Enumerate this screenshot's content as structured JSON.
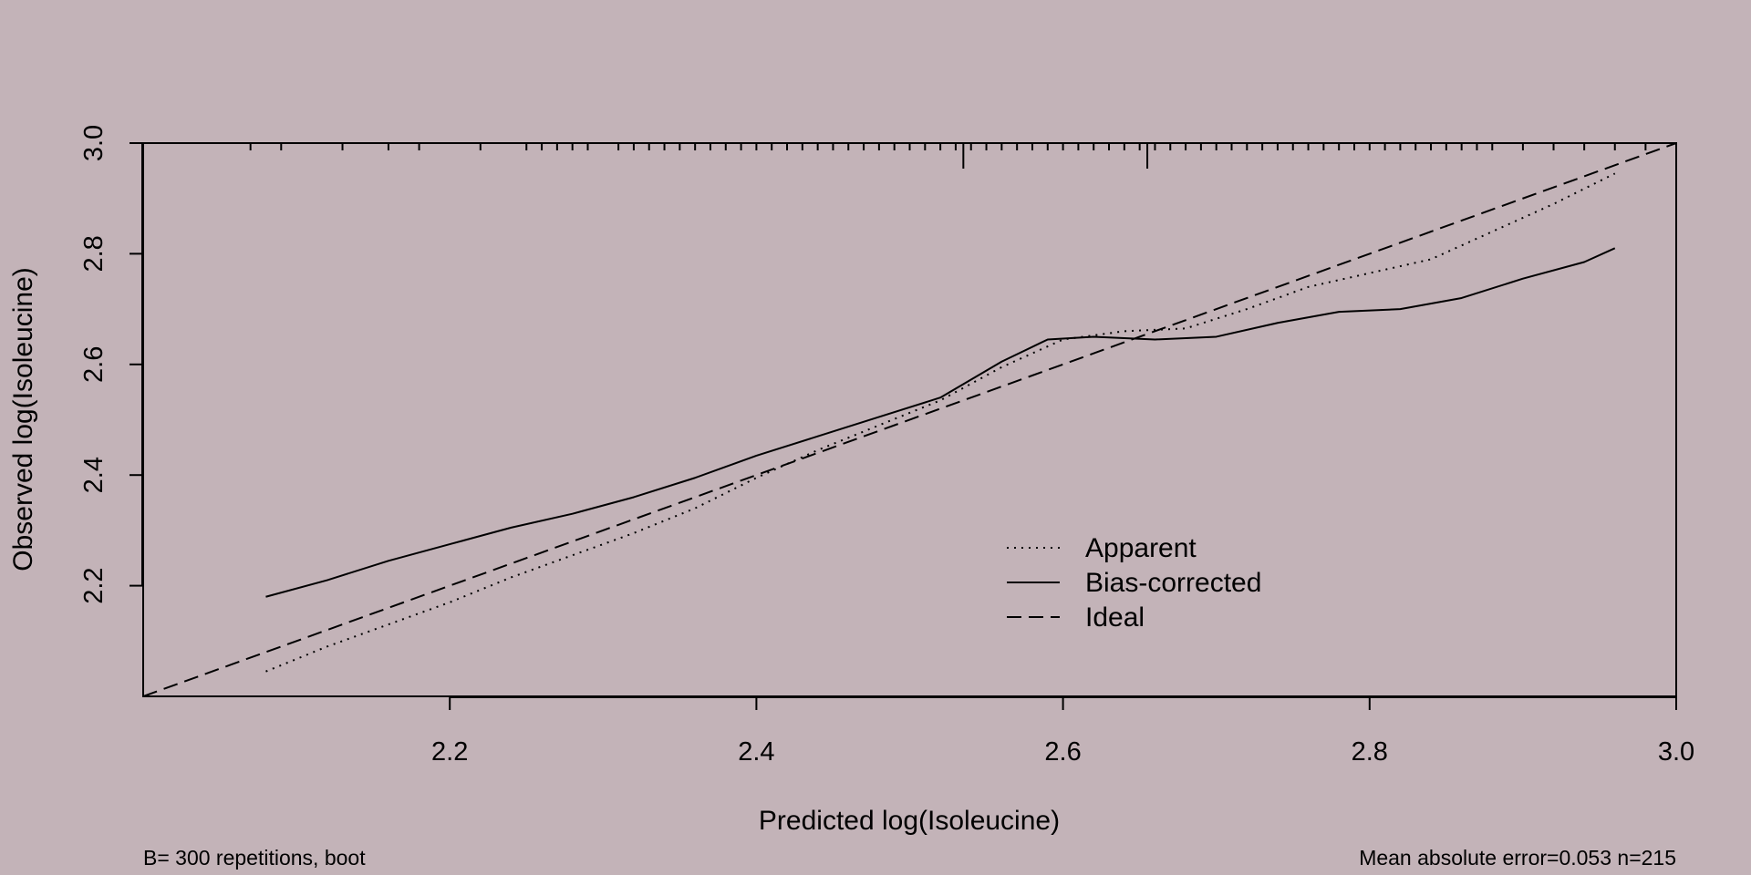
{
  "chart_data": {
    "type": "line",
    "title": "",
    "xlabel": "Predicted log(Isoleucine)",
    "ylabel": "Observed log(Isoleucine)",
    "xlim": [
      2.0,
      3.0
    ],
    "ylim": [
      2.0,
      3.0
    ],
    "x_ticks": [
      "2.2",
      "2.4",
      "2.6",
      "2.8",
      "3.0"
    ],
    "y_ticks": [
      "2.2",
      "2.4",
      "2.6",
      "2.8",
      "3.0"
    ],
    "grid": false,
    "legend_position": "bottom-center",
    "series": [
      {
        "name": "Apparent",
        "style": "dotted",
        "x": [
          2.08,
          2.12,
          2.16,
          2.2,
          2.24,
          2.28,
          2.32,
          2.36,
          2.4,
          2.44,
          2.48,
          2.52,
          2.56,
          2.6,
          2.64,
          2.68,
          2.72,
          2.76,
          2.8,
          2.84,
          2.88,
          2.92,
          2.96
        ],
        "y": [
          2.045,
          2.09,
          2.13,
          2.17,
          2.215,
          2.255,
          2.295,
          2.34,
          2.395,
          2.445,
          2.49,
          2.535,
          2.595,
          2.645,
          2.66,
          2.665,
          2.7,
          2.74,
          2.765,
          2.79,
          2.84,
          2.89,
          2.945
        ]
      },
      {
        "name": "Bias-corrected",
        "style": "solid",
        "x": [
          2.08,
          2.12,
          2.16,
          2.2,
          2.24,
          2.28,
          2.32,
          2.36,
          2.4,
          2.44,
          2.48,
          2.52,
          2.56,
          2.59,
          2.62,
          2.66,
          2.7,
          2.74,
          2.78,
          2.82,
          2.86,
          2.9,
          2.94,
          2.96
        ],
        "y": [
          2.18,
          2.21,
          2.245,
          2.275,
          2.305,
          2.33,
          2.36,
          2.395,
          2.435,
          2.47,
          2.505,
          2.54,
          2.605,
          2.645,
          2.65,
          2.645,
          2.65,
          2.675,
          2.695,
          2.7,
          2.72,
          2.755,
          2.785,
          2.81
        ]
      },
      {
        "name": "Ideal",
        "style": "dashed",
        "x": [
          2.0,
          3.0
        ],
        "y": [
          2.0,
          3.0
        ]
      }
    ],
    "rug_top_x": [
      2.07,
      2.09,
      2.13,
      2.16,
      2.18,
      2.22,
      2.25,
      2.26,
      2.27,
      2.28,
      2.29,
      2.31,
      2.32,
      2.33,
      2.34,
      2.35,
      2.36,
      2.37,
      2.38,
      2.39,
      2.4,
      2.41,
      2.42,
      2.43,
      2.44,
      2.45,
      2.46,
      2.47,
      2.48,
      2.49,
      2.5,
      2.51,
      2.52,
      2.53,
      2.54,
      2.55,
      2.56,
      2.57,
      2.58,
      2.59,
      2.6,
      2.61,
      2.62,
      2.63,
      2.64,
      2.65,
      2.66,
      2.67,
      2.68,
      2.69,
      2.7,
      2.71,
      2.72,
      2.73,
      2.74,
      2.75,
      2.76,
      2.77,
      2.78,
      2.79,
      2.8,
      2.81,
      2.82,
      2.83,
      2.84,
      2.85,
      2.86,
      2.87,
      2.88,
      2.9,
      2.92,
      2.94,
      2.96,
      2.98
    ],
    "rug_top_long_x": [
      2.535,
      2.655
    ]
  },
  "footer": {
    "left": "B= 300 repetitions, boot",
    "right": "Mean absolute error=0.053 n=215"
  }
}
